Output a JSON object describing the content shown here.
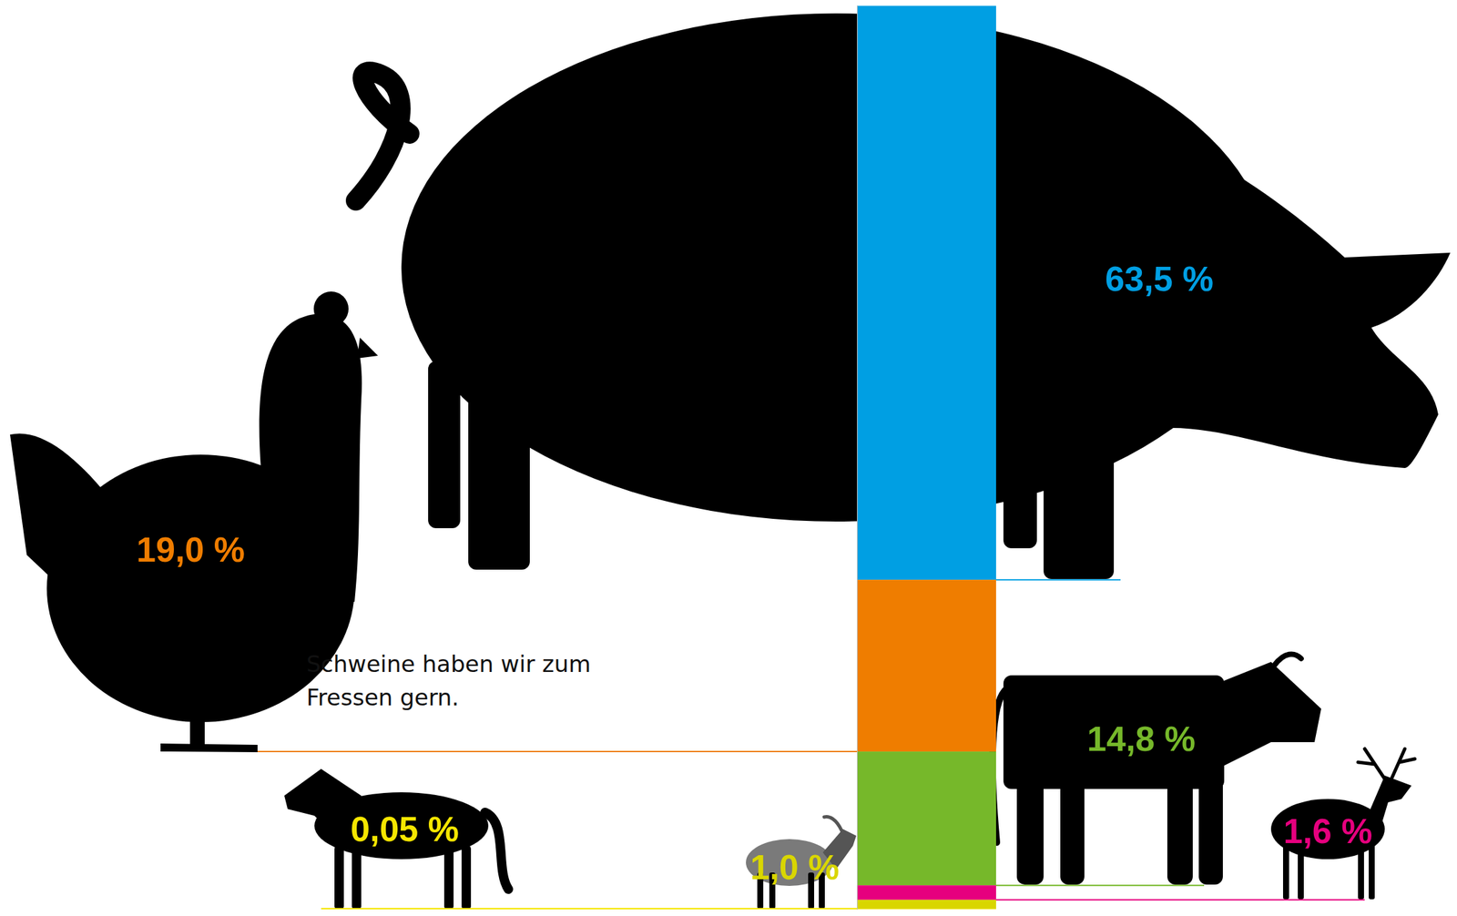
{
  "chart_data": {
    "type": "bar",
    "stacked": true,
    "data_labels": true,
    "tick_labels": false,
    "categories": [
      null,
      null,
      null,
      null,
      null,
      null
    ],
    "values": [
      63.5,
      19.0,
      14.8,
      1.6,
      1.0,
      0.05
    ],
    "value_labels": [
      "63,5 %",
      "19,0 %",
      "14,8 %",
      "1,6 %",
      "1,0 %",
      "0,05 %"
    ],
    "colors": [
      "#009fe3",
      "#ef7d00",
      "#76b82a",
      "#e6007e",
      "#d9d600",
      "#f5e600"
    ],
    "ylim": [
      0,
      100
    ],
    "annotations": [
      "Schweine haben wir zum Fressen gern."
    ]
  }
}
